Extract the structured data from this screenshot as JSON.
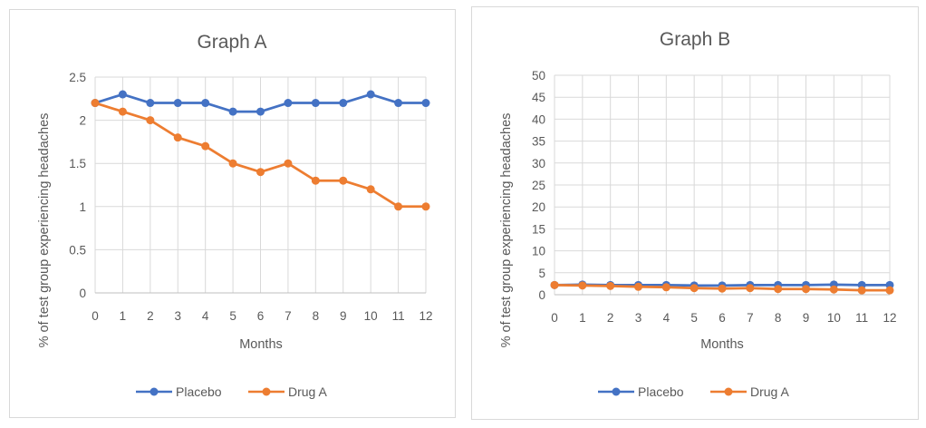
{
  "chart_data": [
    {
      "type": "line",
      "title": "Graph A",
      "xlabel": "Months",
      "ylabel": "% of test group experiencing headaches",
      "x": [
        0,
        1,
        2,
        3,
        4,
        5,
        6,
        7,
        8,
        9,
        10,
        11,
        12
      ],
      "x_tick_labels": [
        "0",
        "1",
        "2",
        "3",
        "4",
        "5",
        "6",
        "7",
        "8",
        "9",
        "10",
        "11",
        "12"
      ],
      "ylim": [
        0,
        2.5
      ],
      "y_ticks": [
        0,
        0.5,
        1,
        1.5,
        2,
        2.5
      ],
      "y_tick_labels": [
        "0",
        "0.5",
        "1",
        "1.5",
        "2",
        "2.5"
      ],
      "grid": true,
      "legend_position": "bottom",
      "series": [
        {
          "name": "Placebo",
          "color": "#4472C4",
          "values": [
            2.2,
            2.3,
            2.2,
            2.2,
            2.2,
            2.1,
            2.1,
            2.2,
            2.2,
            2.2,
            2.3,
            2.2,
            2.2
          ]
        },
        {
          "name": "Drug A",
          "color": "#ED7D31",
          "values": [
            2.2,
            2.1,
            2.0,
            1.8,
            1.7,
            1.5,
            1.4,
            1.5,
            1.3,
            1.3,
            1.2,
            1.0,
            1.0
          ]
        }
      ]
    },
    {
      "type": "line",
      "title": "Graph B",
      "xlabel": "Months",
      "ylabel": "% of test group experiencing headaches",
      "x": [
        0,
        1,
        2,
        3,
        4,
        5,
        6,
        7,
        8,
        9,
        10,
        11,
        12
      ],
      "x_tick_labels": [
        "0",
        "1",
        "2",
        "3",
        "4",
        "5",
        "6",
        "7",
        "8",
        "9",
        "10",
        "11",
        "12"
      ],
      "ylim": [
        0,
        50
      ],
      "y_ticks": [
        0,
        5,
        10,
        15,
        20,
        25,
        30,
        35,
        40,
        45,
        50
      ],
      "y_tick_labels": [
        "0",
        "5",
        "10",
        "15",
        "20",
        "25",
        "30",
        "35",
        "40",
        "45",
        "50"
      ],
      "grid": true,
      "legend_position": "bottom",
      "series": [
        {
          "name": "Placebo",
          "color": "#4472C4",
          "values": [
            2.2,
            2.3,
            2.2,
            2.2,
            2.2,
            2.1,
            2.1,
            2.2,
            2.2,
            2.2,
            2.3,
            2.2,
            2.2
          ]
        },
        {
          "name": "Drug A",
          "color": "#ED7D31",
          "values": [
            2.2,
            2.1,
            2.0,
            1.8,
            1.7,
            1.5,
            1.4,
            1.5,
            1.3,
            1.3,
            1.2,
            1.0,
            1.0
          ]
        }
      ]
    }
  ]
}
